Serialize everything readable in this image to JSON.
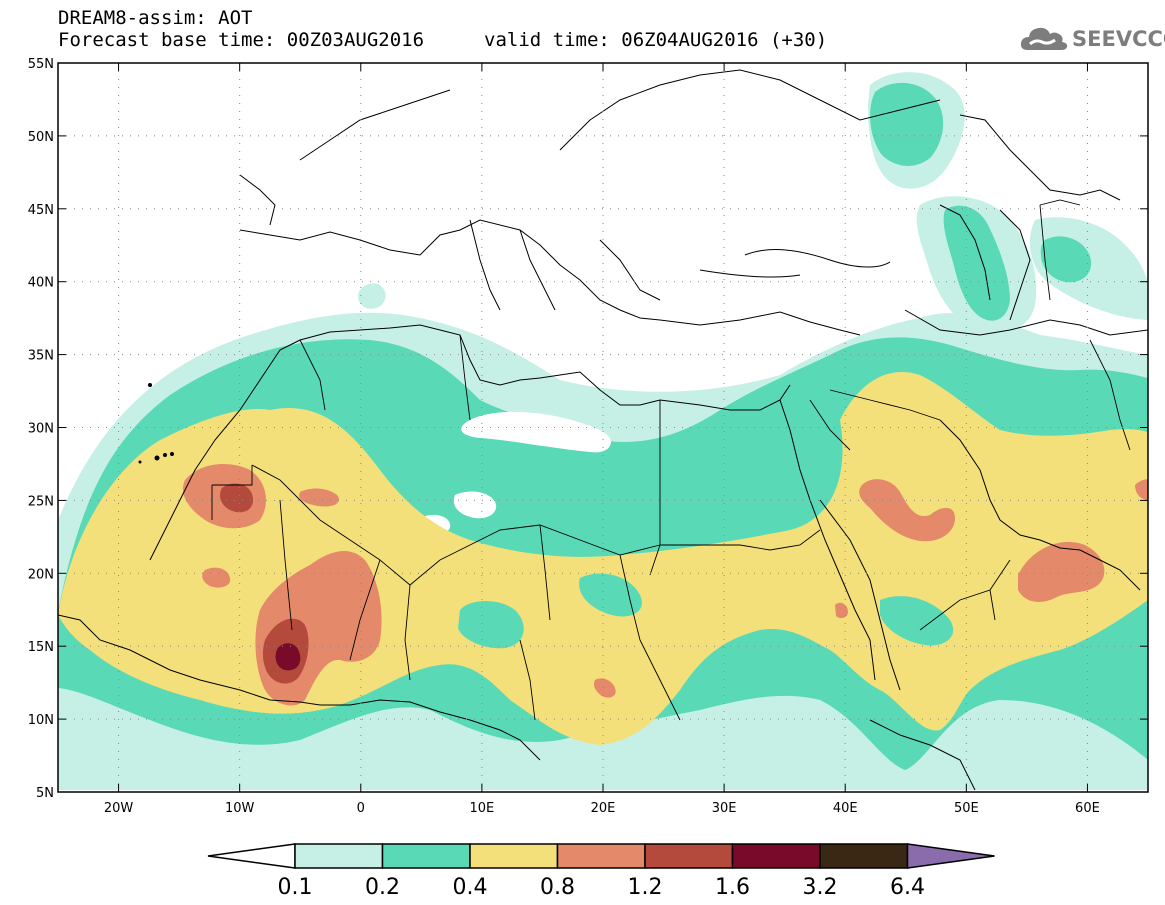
{
  "header": {
    "line1": "DREAM8-assim: AOT",
    "line2": "Forecast base time: 00Z03AUG2016",
    "line3": "valid time: 06Z04AUG2016 (+30)"
  },
  "logo": {
    "text": "SEEVCCC",
    "icon": "cloud-icon"
  },
  "map": {
    "lon_range": [
      -25,
      65
    ],
    "lat_range": [
      5,
      55
    ],
    "lat_ticks": [
      "5N",
      "10N",
      "15N",
      "20N",
      "25N",
      "30N",
      "35N",
      "40N",
      "45N",
      "50N",
      "55N"
    ],
    "lon_ticks": [
      "20W",
      "10W",
      "0",
      "10E",
      "20E",
      "30E",
      "40E",
      "50E",
      "60E"
    ],
    "grid": "dotted"
  },
  "colorbar": {
    "levels": [
      "0.1",
      "0.2",
      "0.4",
      "0.8",
      "1.2",
      "1.6",
      "3.2",
      "6.4"
    ],
    "colors": [
      "#ffffff",
      "#c6f0e6",
      "#5ad9b6",
      "#f4e07a",
      "#e48a6a",
      "#b44a3c",
      "#7a0a2a",
      "#3a2814",
      "#8a6cac"
    ]
  },
  "chart_data": {
    "type": "heatmap",
    "title": "DREAM8-assim: AOT",
    "xlabel": "",
    "ylabel": "",
    "xlim": [
      -25,
      65
    ],
    "ylim": [
      5,
      55
    ],
    "levels": [
      0.1,
      0.2,
      0.4,
      0.8,
      1.2,
      1.6,
      3.2,
      6.4
    ],
    "maxima": [
      {
        "lon": -5.5,
        "lat": 14.5,
        "value": 3.2
      },
      {
        "lon": -10.5,
        "lat": 25,
        "value": 1.6
      },
      {
        "lon": 58,
        "lat": 21,
        "value": 1.2
      },
      {
        "lon": 46,
        "lat": 24,
        "value": 1.2
      }
    ]
  }
}
